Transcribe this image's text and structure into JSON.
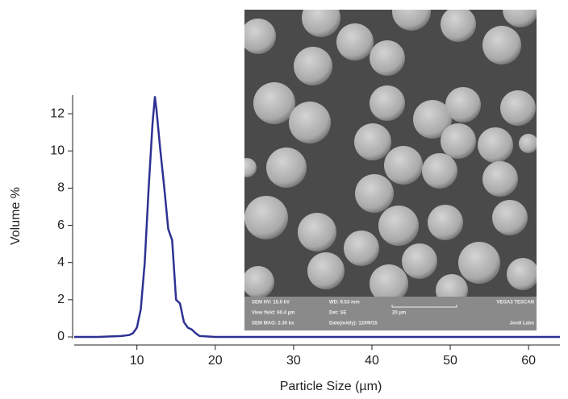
{
  "chart_data": {
    "type": "line",
    "x_label": "Particle Size (µm)",
    "y_label": "Volume %",
    "x": [
      2,
      5,
      8,
      9,
      9.5,
      10,
      10.5,
      11,
      11.5,
      12,
      12.3,
      12.5,
      13,
      13.5,
      14,
      14.5,
      15,
      15.5,
      16,
      16.5,
      17,
      17.5,
      18,
      20,
      30,
      40,
      50,
      64
    ],
    "series": [
      {
        "color": "#2e3192",
        "values": [
          0,
          0,
          0.05,
          0.1,
          0.2,
          0.5,
          1.5,
          4,
          8,
          11.5,
          12.9,
          12.2,
          10,
          8,
          5.8,
          5.2,
          2,
          1.8,
          0.8,
          0.5,
          0.4,
          0.2,
          0.05,
          0,
          0,
          0,
          0,
          0
        ]
      }
    ],
    "xlim": [
      2,
      64
    ],
    "ylim": [
      0,
      13
    ],
    "xticks": [
      10,
      20,
      30,
      40,
      50,
      60
    ],
    "yticks": [
      0,
      2,
      4,
      6,
      8,
      10,
      12
    ]
  },
  "inset": {
    "info": [
      [
        "SEM HV: 15.0 kV",
        "WD: 9.53 mm",
        "VEGA3 TESCAN"
      ],
      [
        "View field: 60.4 µm",
        "Det: SE",
        "20 µm"
      ],
      [
        "SEM MAG: 2.30 kx",
        "Date(m/d/y): 12/09/15",
        "Jordi Labs"
      ]
    ]
  }
}
